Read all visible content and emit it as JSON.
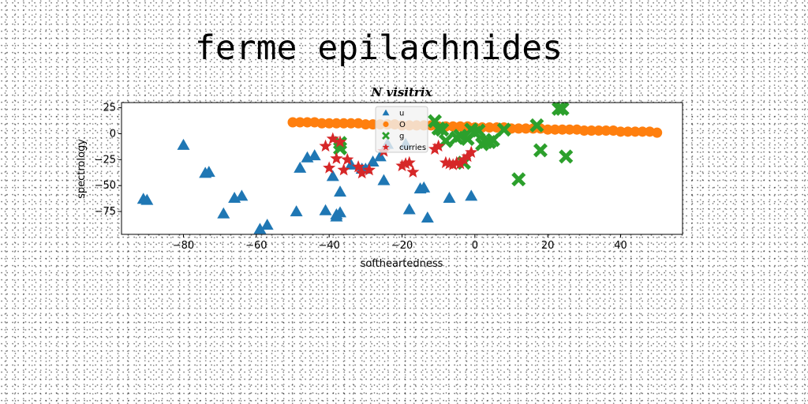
{
  "page": {
    "heading": "ferme epilachnides"
  },
  "chart_data": {
    "type": "scatter",
    "title": "N visitrix",
    "xlabel": "softheartedness",
    "ylabel": "spectrology",
    "xlim": [
      -97,
      57
    ],
    "ylim": [
      -97,
      30
    ],
    "xticks": [
      -80,
      -60,
      -40,
      -20,
      0,
      20,
      40
    ],
    "yticks": [
      25,
      0,
      -25,
      -50,
      -75
    ],
    "grid": false,
    "legend_position": "top-center",
    "series": [
      {
        "name": "u",
        "marker": "triangle",
        "color": "#1f77b4",
        "x": [
          -91,
          -90,
          -80,
          -74,
          -73,
          -69,
          -66,
          -64,
          -59,
          -57,
          -49,
          -48,
          -46,
          -44,
          -41,
          -39,
          -38,
          -38,
          -37,
          -37,
          -34,
          -31,
          -30,
          -28,
          -26,
          -25,
          -24,
          -19,
          -18,
          -15,
          -14,
          -13,
          -7,
          -1
        ],
        "y": [
          -63,
          -64,
          -11,
          -38,
          -37,
          -77,
          -62,
          -60,
          -92,
          -88,
          -75,
          -33,
          -23,
          -21,
          -74,
          -41,
          -80,
          -78,
          -56,
          -76,
          -30,
          -34,
          -34,
          -27,
          -22,
          -45,
          -10,
          -10,
          -73,
          -53,
          -52,
          -81,
          -62,
          -60
        ]
      },
      {
        "name": "O",
        "marker": "circle",
        "color": "#ff7f0e",
        "x": [
          -50,
          -48,
          -46,
          -44,
          -42,
          -40,
          -38,
          -36,
          -34,
          -32,
          -30,
          -28,
          -26,
          -24,
          -22,
          -20,
          -18,
          -16,
          -14,
          -12,
          -10,
          -8,
          -6,
          -4,
          -2,
          0,
          2,
          4,
          6,
          8,
          10,
          12,
          14,
          16,
          18,
          20,
          22,
          24,
          26,
          28,
          30,
          32,
          34,
          36,
          38,
          40,
          42,
          44,
          46,
          48,
          50
        ],
        "y": [
          11,
          11,
          11,
          11,
          10,
          10,
          10,
          10,
          10,
          10,
          9,
          9,
          9,
          9,
          9,
          8,
          8,
          8,
          8,
          8,
          7,
          7,
          7,
          7,
          7,
          6,
          6,
          6,
          6,
          6,
          5,
          5,
          5,
          5,
          5,
          4,
          4,
          4,
          4,
          4,
          3,
          3,
          3,
          3,
          3,
          2,
          2,
          2,
          2,
          2,
          1
        ]
      },
      {
        "name": "g",
        "marker": "x",
        "color": "#2ca02c",
        "x": [
          -37,
          -37,
          -11,
          -10,
          -9,
          -8,
          -5,
          -4,
          -3,
          -2,
          -1,
          0,
          1,
          2,
          3,
          4,
          5,
          8,
          12,
          17,
          18,
          23,
          24,
          25
        ],
        "y": [
          -14,
          -9,
          12,
          5,
          4,
          -7,
          -4,
          -2,
          -28,
          -5,
          4,
          1,
          3,
          -10,
          -8,
          -8,
          -6,
          4,
          -44,
          8,
          -16,
          24,
          24,
          -22
        ]
      },
      {
        "name": "curries",
        "marker": "star",
        "color": "#d62728",
        "x": [
          -41,
          -40,
          -39,
          -38,
          -37,
          -36,
          -35,
          -32,
          -31,
          -29,
          -25,
          -20,
          -19,
          -18,
          -17,
          -11,
          -10,
          -8,
          -7,
          -6,
          -5,
          -4,
          -3,
          -2,
          -1
        ],
        "y": [
          -12,
          -33,
          -5,
          -24,
          -8,
          -35,
          -25,
          -32,
          -38,
          -35,
          -17,
          -31,
          -29,
          -28,
          -37,
          -15,
          -12,
          -28,
          -29,
          -30,
          -28,
          -29,
          -25,
          -22,
          -18
        ]
      }
    ]
  }
}
